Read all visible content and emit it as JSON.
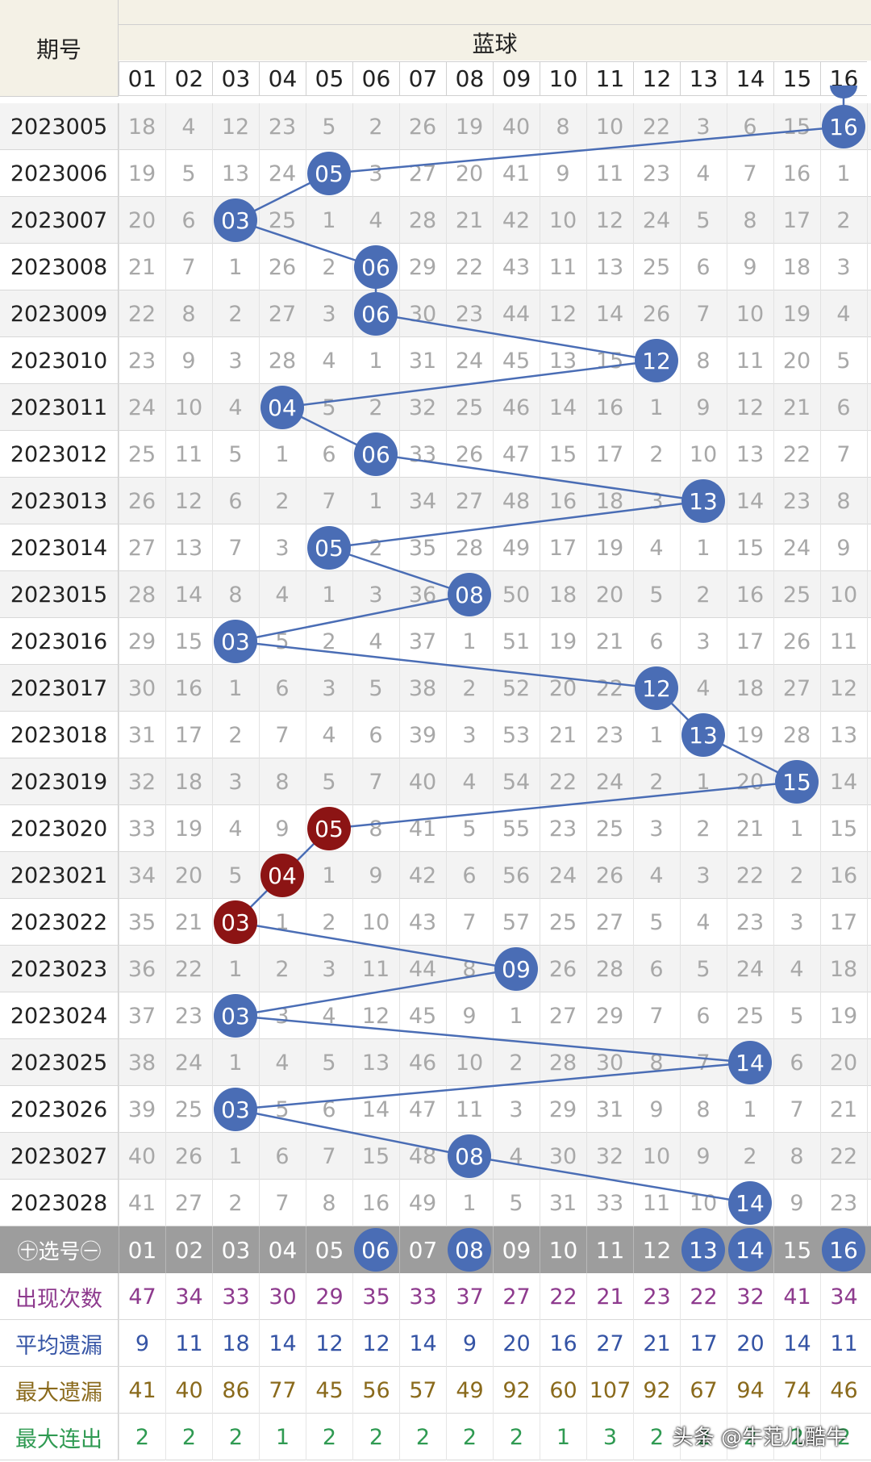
{
  "header": {
    "period_label": "期号",
    "blue_label": "蓝球"
  },
  "columns": [
    "01",
    "02",
    "03",
    "04",
    "05",
    "06",
    "07",
    "08",
    "09",
    "10",
    "11",
    "12",
    "13",
    "14",
    "15",
    "16"
  ],
  "rows": [
    {
      "issue": "2023005",
      "hit": 16,
      "hot": false,
      "miss": [
        "18",
        "4",
        "12",
        "23",
        "5",
        "2",
        "26",
        "19",
        "40",
        "8",
        "10",
        "22",
        "3",
        "6",
        "15",
        ""
      ]
    },
    {
      "issue": "2023006",
      "hit": 5,
      "hot": false,
      "miss": [
        "19",
        "5",
        "13",
        "24",
        "",
        "3",
        "27",
        "20",
        "41",
        "9",
        "11",
        "23",
        "4",
        "7",
        "16",
        "1"
      ]
    },
    {
      "issue": "2023007",
      "hit": 3,
      "hot": false,
      "miss": [
        "20",
        "6",
        "",
        "25",
        "1",
        "4",
        "28",
        "21",
        "42",
        "10",
        "12",
        "24",
        "5",
        "8",
        "17",
        "2"
      ]
    },
    {
      "issue": "2023008",
      "hit": 6,
      "hot": false,
      "miss": [
        "21",
        "7",
        "1",
        "26",
        "2",
        "",
        "29",
        "22",
        "43",
        "11",
        "13",
        "25",
        "6",
        "9",
        "18",
        "3"
      ]
    },
    {
      "issue": "2023009",
      "hit": 6,
      "hot": false,
      "miss": [
        "22",
        "8",
        "2",
        "27",
        "3",
        "",
        "30",
        "23",
        "44",
        "12",
        "14",
        "26",
        "7",
        "10",
        "19",
        "4"
      ]
    },
    {
      "issue": "2023010",
      "hit": 12,
      "hot": false,
      "miss": [
        "23",
        "9",
        "3",
        "28",
        "4",
        "1",
        "31",
        "24",
        "45",
        "13",
        "15",
        "",
        "8",
        "11",
        "20",
        "5"
      ]
    },
    {
      "issue": "2023011",
      "hit": 4,
      "hot": false,
      "miss": [
        "24",
        "10",
        "4",
        "",
        "5",
        "2",
        "32",
        "25",
        "46",
        "14",
        "16",
        "1",
        "9",
        "12",
        "21",
        "6"
      ]
    },
    {
      "issue": "2023012",
      "hit": 6,
      "hot": false,
      "miss": [
        "25",
        "11",
        "5",
        "1",
        "6",
        "",
        "33",
        "26",
        "47",
        "15",
        "17",
        "2",
        "10",
        "13",
        "22",
        "7"
      ]
    },
    {
      "issue": "2023013",
      "hit": 13,
      "hot": false,
      "miss": [
        "26",
        "12",
        "6",
        "2",
        "7",
        "1",
        "34",
        "27",
        "48",
        "16",
        "18",
        "3",
        "",
        "14",
        "23",
        "8"
      ]
    },
    {
      "issue": "2023014",
      "hit": 5,
      "hot": false,
      "miss": [
        "27",
        "13",
        "7",
        "3",
        "",
        "2",
        "35",
        "28",
        "49",
        "17",
        "19",
        "4",
        "1",
        "15",
        "24",
        "9"
      ]
    },
    {
      "issue": "2023015",
      "hit": 8,
      "hot": false,
      "miss": [
        "28",
        "14",
        "8",
        "4",
        "1",
        "3",
        "36",
        "",
        "50",
        "18",
        "20",
        "5",
        "2",
        "16",
        "25",
        "10"
      ]
    },
    {
      "issue": "2023016",
      "hit": 3,
      "hot": false,
      "miss": [
        "29",
        "15",
        "",
        "5",
        "2",
        "4",
        "37",
        "1",
        "51",
        "19",
        "21",
        "6",
        "3",
        "17",
        "26",
        "11"
      ]
    },
    {
      "issue": "2023017",
      "hit": 12,
      "hot": false,
      "miss": [
        "30",
        "16",
        "1",
        "6",
        "3",
        "5",
        "38",
        "2",
        "52",
        "20",
        "22",
        "",
        "4",
        "18",
        "27",
        "12"
      ]
    },
    {
      "issue": "2023018",
      "hit": 13,
      "hot": false,
      "miss": [
        "31",
        "17",
        "2",
        "7",
        "4",
        "6",
        "39",
        "3",
        "53",
        "21",
        "23",
        "1",
        "",
        "19",
        "28",
        "13"
      ]
    },
    {
      "issue": "2023019",
      "hit": 15,
      "hot": false,
      "miss": [
        "32",
        "18",
        "3",
        "8",
        "5",
        "7",
        "40",
        "4",
        "54",
        "22",
        "24",
        "2",
        "1",
        "20",
        "",
        "14"
      ]
    },
    {
      "issue": "2023020",
      "hit": 5,
      "hot": true,
      "miss": [
        "33",
        "19",
        "4",
        "9",
        "",
        "8",
        "41",
        "5",
        "55",
        "23",
        "25",
        "3",
        "2",
        "21",
        "1",
        "15"
      ]
    },
    {
      "issue": "2023021",
      "hit": 4,
      "hot": true,
      "miss": [
        "34",
        "20",
        "5",
        "",
        "1",
        "9",
        "42",
        "6",
        "56",
        "24",
        "26",
        "4",
        "3",
        "22",
        "2",
        "16"
      ]
    },
    {
      "issue": "2023022",
      "hit": 3,
      "hot": true,
      "miss": [
        "35",
        "21",
        "",
        "1",
        "2",
        "10",
        "43",
        "7",
        "57",
        "25",
        "27",
        "5",
        "4",
        "23",
        "3",
        "17"
      ]
    },
    {
      "issue": "2023023",
      "hit": 9,
      "hot": false,
      "miss": [
        "36",
        "22",
        "1",
        "2",
        "3",
        "11",
        "44",
        "8",
        "",
        "26",
        "28",
        "6",
        "5",
        "24",
        "4",
        "18"
      ]
    },
    {
      "issue": "2023024",
      "hit": 3,
      "hot": false,
      "miss": [
        "37",
        "23",
        "",
        "3",
        "4",
        "12",
        "45",
        "9",
        "1",
        "27",
        "29",
        "7",
        "6",
        "25",
        "5",
        "19"
      ]
    },
    {
      "issue": "2023025",
      "hit": 14,
      "hot": false,
      "miss": [
        "38",
        "24",
        "1",
        "4",
        "5",
        "13",
        "46",
        "10",
        "2",
        "28",
        "30",
        "8",
        "7",
        "",
        "6",
        "20"
      ]
    },
    {
      "issue": "2023026",
      "hit": 3,
      "hot": false,
      "miss": [
        "39",
        "25",
        "",
        "5",
        "6",
        "14",
        "47",
        "11",
        "3",
        "29",
        "31",
        "9",
        "8",
        "1",
        "7",
        "21"
      ]
    },
    {
      "issue": "2023027",
      "hit": 8,
      "hot": false,
      "miss": [
        "40",
        "26",
        "1",
        "6",
        "7",
        "15",
        "48",
        "",
        "4",
        "30",
        "32",
        "10",
        "9",
        "2",
        "8",
        "22"
      ]
    },
    {
      "issue": "2023028",
      "hit": 14,
      "hot": false,
      "miss": [
        "41",
        "27",
        "2",
        "7",
        "8",
        "16",
        "49",
        "1",
        "5",
        "31",
        "33",
        "11",
        "10",
        "",
        "9",
        "23"
      ]
    }
  ],
  "select_row": {
    "label": "㊉选号㊀",
    "selected": [
      "06",
      "08",
      "13",
      "14",
      "16"
    ]
  },
  "stats": [
    {
      "label": "出现次数",
      "color": "#8e3b8e",
      "values": [
        "47",
        "34",
        "33",
        "30",
        "29",
        "35",
        "33",
        "37",
        "27",
        "22",
        "21",
        "23",
        "22",
        "32",
        "41",
        "34"
      ]
    },
    {
      "label": "平均遗漏",
      "color": "#3554a5",
      "values": [
        "9",
        "11",
        "18",
        "14",
        "12",
        "12",
        "14",
        "9",
        "20",
        "16",
        "27",
        "21",
        "17",
        "20",
        "14",
        "11"
      ]
    },
    {
      "label": "最大遗漏",
      "color": "#8a6a1c",
      "values": [
        "41",
        "40",
        "86",
        "77",
        "45",
        "56",
        "57",
        "49",
        "92",
        "60",
        "107",
        "92",
        "67",
        "94",
        "74",
        "46"
      ]
    },
    {
      "label": "最大连出",
      "color": "#2f9a52",
      "values": [
        "2",
        "2",
        "2",
        "1",
        "2",
        "2",
        "2",
        "2",
        "2",
        "1",
        "3",
        "2",
        "2",
        "2",
        "2",
        "2"
      ]
    }
  ],
  "watermark": "头条 @牛范儿酷牛",
  "colors": {
    "ball_blue": "#4a6db5",
    "ball_red": "#8c1414",
    "link_line": "#4a6db5"
  }
}
